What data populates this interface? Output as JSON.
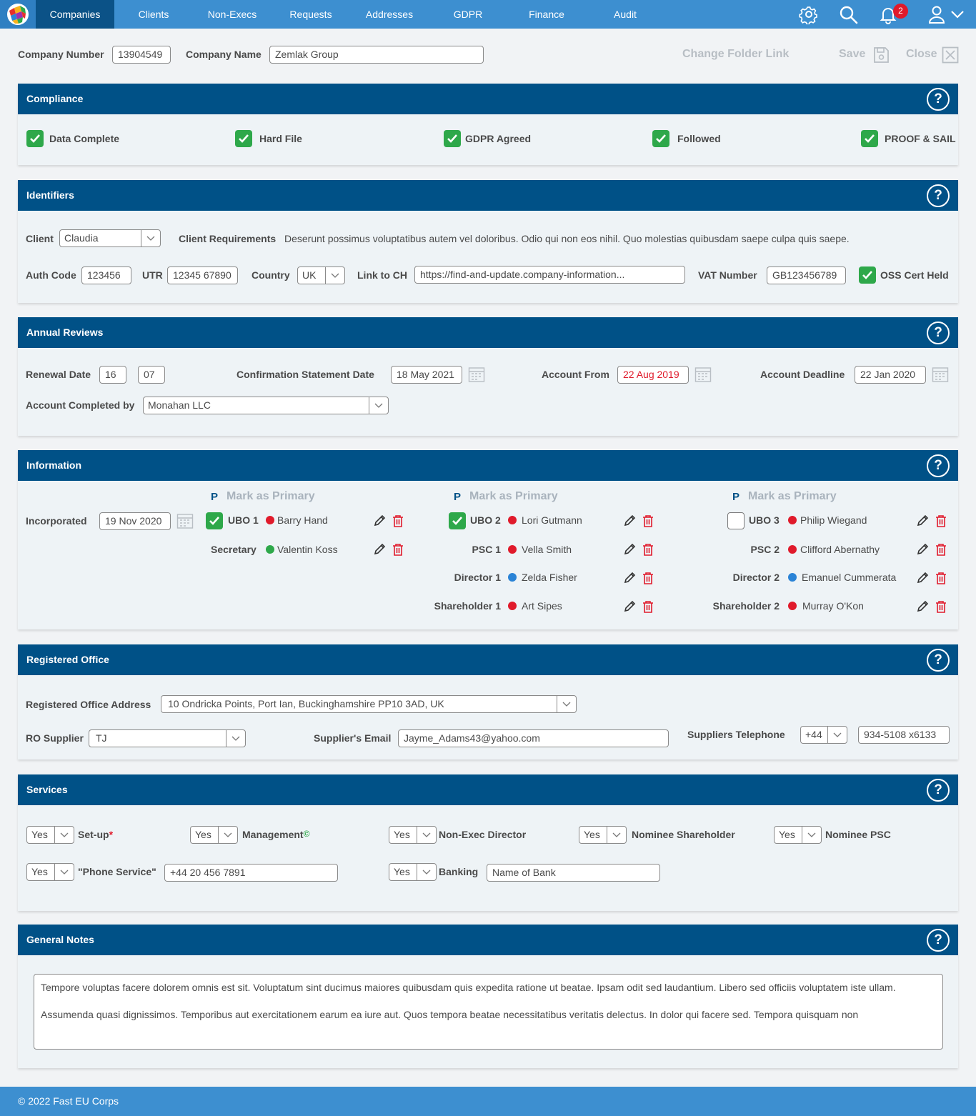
{
  "nav": {
    "tabs": [
      {
        "label": "Companies"
      },
      {
        "label": "Clients"
      },
      {
        "label": "Non-Execs"
      },
      {
        "label": "Requests"
      },
      {
        "label": "Addresses"
      },
      {
        "label": "GDPR"
      },
      {
        "label": "Finance"
      },
      {
        "label": "Audit"
      }
    ],
    "notification_count": "2",
    "icons": [
      "gear-icon",
      "search-icon",
      "bell-icon",
      "user-icon",
      "chevron-down-icon"
    ]
  },
  "header": {
    "company_number_label": "Company Number",
    "company_number": "13904549",
    "company_name_label": "Company Name",
    "company_name": "Zemlak Group",
    "change_folder_link": "Change Folder Link",
    "save": "Save",
    "close": "Close"
  },
  "compliance": {
    "title": "Compliance",
    "help": "?",
    "items": [
      {
        "label": "Data Complete",
        "checked": true
      },
      {
        "label": "Hard File",
        "checked": true
      },
      {
        "label": "GDPR Agreed",
        "checked": true
      },
      {
        "label": "Followed",
        "checked": true
      },
      {
        "label": "PROOF & SAIL",
        "checked": true
      }
    ]
  },
  "identifiers": {
    "title": "Identifiers",
    "help": "?",
    "client_label": "Client",
    "client": "Claudia",
    "client_requirements_label": "Client Requirements",
    "client_requirements": "Deserunt possimus voluptatibus autem vel doloribus. Odio qui non eos nihil. Quo molestias quibusdam saepe culpa quis saepe.",
    "auth_code_label": "Auth Code",
    "auth_code": "123456",
    "utr_label": "UTR",
    "utr": "12345 67890",
    "country_label": "Country",
    "country": "UK",
    "link_to_ch_label": "Link to CH",
    "link_to_ch": "https://find-and-update.company-information...",
    "vat_number_label": "VAT Number",
    "vat_number": "GB123456789",
    "oss_cert_label": "OSS Cert Held",
    "oss_cert": true
  },
  "annual_reviews": {
    "title": "Annual Reviews",
    "help": "?",
    "renewal_date_label": "Renewal Date",
    "renewal_day": "16",
    "renewal_month": "07",
    "confirmation_label": "Confirmation Statement Date",
    "confirmation_date": "18 May 2021",
    "account_from_label": "Account From",
    "account_from": "22 Aug 2019",
    "account_from_color": "#e01a2b",
    "account_deadline_label": "Account Deadline",
    "account_deadline": "22 Jan 2020",
    "completed_by_label": "Account Completed by",
    "completed_by": "Monahan LLC"
  },
  "information": {
    "title": "Information",
    "help": "?",
    "incorporated_label": "Incorporated",
    "incorporated": "19 Nov 2020",
    "mark_primary_p": "P",
    "mark_primary_label": "Mark as Primary",
    "col1": {
      "ubo_label": "UBO 1",
      "ubo_name": "Barry Hand",
      "ubo_checked": true,
      "ubo_status": "red",
      "rows": [
        {
          "role": "Secretary",
          "name": "Valentin Koss",
          "status": "green"
        }
      ]
    },
    "col2": {
      "ubo_label": "UBO 2",
      "ubo_name": "Lori Gutmann",
      "ubo_checked": true,
      "ubo_status": "red",
      "rows": [
        {
          "role": "PSC 1",
          "name": "Vella Smith",
          "status": "red"
        },
        {
          "role": "Director 1",
          "name": "Zelda Fisher",
          "status": "blue"
        },
        {
          "role": "Shareholder 1",
          "name": "Art Sipes",
          "status": "red"
        }
      ]
    },
    "col3": {
      "ubo_label": "UBO 3",
      "ubo_name": "Philip Wiegand",
      "ubo_checked": false,
      "ubo_status": "red",
      "rows": [
        {
          "role": "PSC 2",
          "name": "Clifford Abernathy",
          "status": "red"
        },
        {
          "role": "Director 2",
          "name": "Emanuel Cummerata",
          "status": "blue"
        },
        {
          "role": "Shareholder 2",
          "name": "Murray O'Kon",
          "status": "red"
        }
      ]
    }
  },
  "registered_office": {
    "title": "Registered Office",
    "help": "?",
    "address_label": "Registered Office Address",
    "address": "10 Ondricka Points, Port Ian, Buckinghamshire PP10 3AD, UK",
    "ro_supplier_label": "RO Supplier",
    "ro_supplier": "TJ",
    "supplier_email_label": "Supplier's Email",
    "supplier_email": "Jayme_Adams43@yahoo.com",
    "supplier_tel_label": "Suppliers Telephone",
    "supplier_tel_code": "+44",
    "supplier_tel": "934-5108 x6133"
  },
  "services": {
    "title": "Services",
    "help": "?",
    "setup_label": "Set-up",
    "setup_marker": "*",
    "setup": "Yes",
    "management_label": "Management",
    "management_marker": "©",
    "management": "Yes",
    "non_exec_label": "Non-Exec Director",
    "non_exec": "Yes",
    "nominee_shareholder_label": "Nominee Shareholder",
    "nominee_shareholder": "Yes",
    "nominee_psc_label": "Nominee PSC",
    "nominee_psc": "Yes",
    "phone_service_label": "\"Phone Service\"",
    "phone_service": "Yes",
    "phone_number": "+44 20 456 7891",
    "banking_label": "Banking",
    "banking": "Yes",
    "bank_name_placeholder": "Name of Bank"
  },
  "general_notes": {
    "title": "General Notes",
    "help": "?",
    "paragraph1": "Tempore voluptas facere dolorem omnis est sit. Voluptatum sint ducimus maiores quibusdam quis expedita ratione ut beatae. Ipsam odit sed laudantium. Libero sed officiis voluptatem iste ullam.",
    "paragraph2": "Assumenda quasi dignissimos. Temporibus aut exercitationem earum ea iure aut. Quos tempora beatae necessitatibus veritatis delectus. In dolor qui facere sed. Tempora quisquam non"
  },
  "footer": {
    "copyright": "© 2022 Fast EU Corps"
  },
  "colors": {
    "nav_bar": "#3d8fd0",
    "nav_active": "#0b5287",
    "panel_header": "#005187",
    "check_green": "#2ea84a",
    "status_red": "#e01a2b",
    "status_green": "#2ea84a",
    "status_blue": "#2a83d6"
  }
}
